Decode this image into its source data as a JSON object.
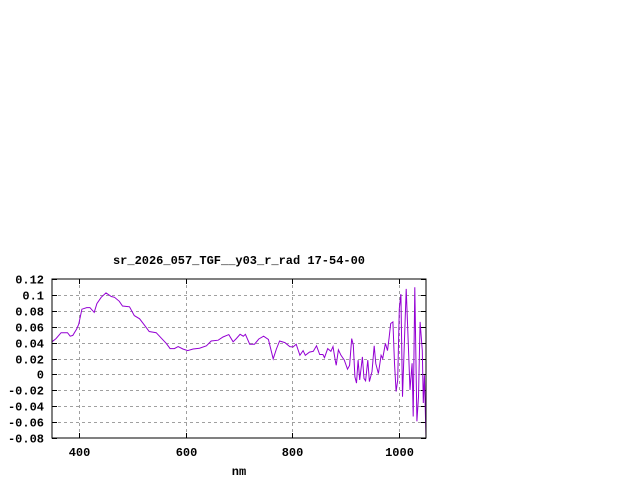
{
  "chart_data": {
    "type": "line",
    "title": "sr_2026_057_TGF__y03_r_rad 17-54-00",
    "xlabel": "nm",
    "ylabel": "",
    "xlim": [
      350,
      1050
    ],
    "ylim": [
      -0.08,
      0.12
    ],
    "xticks": [
      400,
      600,
      800,
      1000
    ],
    "xtick_labels": [
      "400",
      "600",
      "800",
      "1000"
    ],
    "yticks": [
      -0.08,
      -0.06,
      -0.04,
      -0.02,
      0,
      0.02,
      0.04,
      0.06,
      0.08,
      0.1,
      0.12
    ],
    "ytick_labels": [
      "-0.08",
      "-0.06",
      "-0.04",
      "-0.02",
      "0",
      "0.02",
      "0.04",
      "0.06",
      "0.08",
      "0.1",
      "0.12"
    ],
    "grid": true,
    "line_color": "#9400d3",
    "series": [
      {
        "x": [
          350,
          357.5,
          367,
          379,
          384,
          389,
          396,
          400,
          406,
          415,
          421,
          429,
          434,
          442,
          451,
          461,
          467,
          476,
          482,
          495,
          504,
          514,
          523,
          532,
          545,
          554,
          564,
          571,
          579,
          586,
          595,
          604,
          614,
          626,
          639,
          648,
          661,
          670,
          681,
          689,
          695,
          702,
          708,
          712,
          720,
          729,
          737,
          746,
          755,
          764,
          770,
          776,
          786,
          795,
          801,
          807,
          814,
          820,
          824,
          832,
          839,
          845,
          851,
          857,
          860,
          866,
          872,
          876,
          880,
          882,
          886,
          891,
          897,
          903,
          907,
          911,
          914,
          917,
          920,
          923,
          926,
          931,
          934,
          937,
          941,
          944,
          949,
          953,
          956,
          961,
          966,
          969,
          974,
          978,
          981,
          984,
          988,
          991,
          994,
          997,
          1000,
          1003,
          1006,
          1009,
          1013,
          1016,
          1020,
          1024,
          1026,
          1029,
          1033,
          1036,
          1039,
          1043,
          1045,
          1047,
          1050
        ],
        "y": [
          0.041,
          0.045,
          0.0525,
          0.0525,
          0.048,
          0.049,
          0.057,
          0.063,
          0.082,
          0.084,
          0.084,
          0.078,
          0.089,
          0.097,
          0.1025,
          0.098,
          0.097,
          0.092,
          0.086,
          0.085,
          0.074,
          0.07,
          0.062,
          0.054,
          0.0525,
          0.046,
          0.039,
          0.0325,
          0.0325,
          0.035,
          0.032,
          0.03,
          0.032,
          0.033,
          0.036,
          0.042,
          0.043,
          0.047,
          0.05,
          0.041,
          0.045,
          0.0505,
          0.048,
          0.0505,
          0.038,
          0.038,
          0.0445,
          0.048,
          0.044,
          0.0195,
          0.032,
          0.042,
          0.04,
          0.035,
          0.0345,
          0.038,
          0.024,
          0.03,
          0.024,
          0.028,
          0.029,
          0.036,
          0.025,
          0.025,
          0.021,
          0.0325,
          0.029,
          0.035,
          0.018,
          0.0115,
          0.031,
          0.024,
          0.018,
          0.0065,
          0.0115,
          0.045,
          0.037,
          -0.003,
          -0.011,
          0.018,
          -0.007,
          0.022,
          -0.005,
          -0.008,
          0.018,
          -0.009,
          0.0035,
          0.036,
          0.0135,
          0.001,
          0.024,
          0.02,
          0.039,
          0.03,
          0.046,
          0.064,
          0.066,
          0.014,
          -0.0215,
          -0.007,
          0.0825,
          0.101,
          -0.028,
          0.03,
          0.1075,
          0.055,
          -0.0195,
          0.014,
          -0.053,
          0.1095,
          -0.059,
          -0.028,
          0.066,
          0.03,
          -0.036,
          -0.001,
          -0.08
        ]
      }
    ]
  }
}
